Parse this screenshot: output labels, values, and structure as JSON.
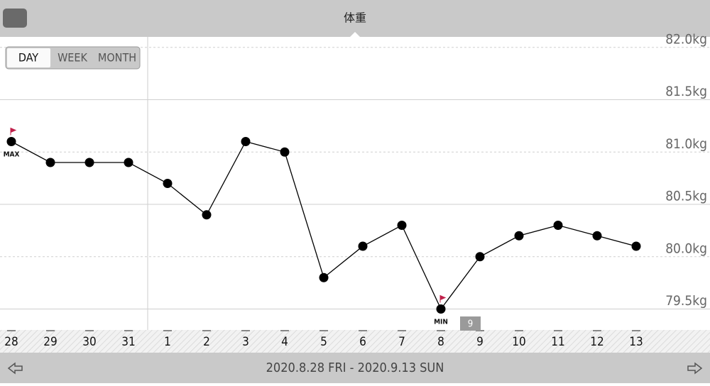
{
  "header": {
    "title": "体重",
    "buttons": [
      "DAY",
      "WEEK",
      "MONTH"
    ]
  },
  "chart_data": {
    "type": "line",
    "categories": [
      "28",
      "29",
      "30",
      "31",
      "1",
      "2",
      "3",
      "4",
      "5",
      "6",
      "7",
      "8",
      "9",
      "10",
      "11",
      "12",
      "13"
    ],
    "values": [
      81.1,
      80.9,
      80.9,
      80.9,
      80.7,
      80.4,
      81.1,
      81.0,
      79.8,
      80.1,
      80.3,
      79.5,
      80.0,
      80.2,
      80.3,
      80.2,
      80.1
    ],
    "color": "#000000",
    "ylim": [
      79.3,
      82.1
    ],
    "yticks": [
      {
        "value": 79.5,
        "label": "79.5kg"
      },
      {
        "value": 80.0,
        "label": "80.0kg"
      },
      {
        "value": 80.5,
        "label": "80.5kg"
      },
      {
        "value": 81.0,
        "label": "81.0kg"
      },
      {
        "value": 81.5,
        "label": "81.5kg"
      },
      {
        "value": 82.0,
        "label": "82.0kg"
      }
    ],
    "grid": true,
    "month_marker": "9",
    "max_label": "MAX",
    "min_label": "MIN"
  },
  "footer": {
    "range": "2020.8.28 FRI - 2020.9.13 SUN"
  }
}
